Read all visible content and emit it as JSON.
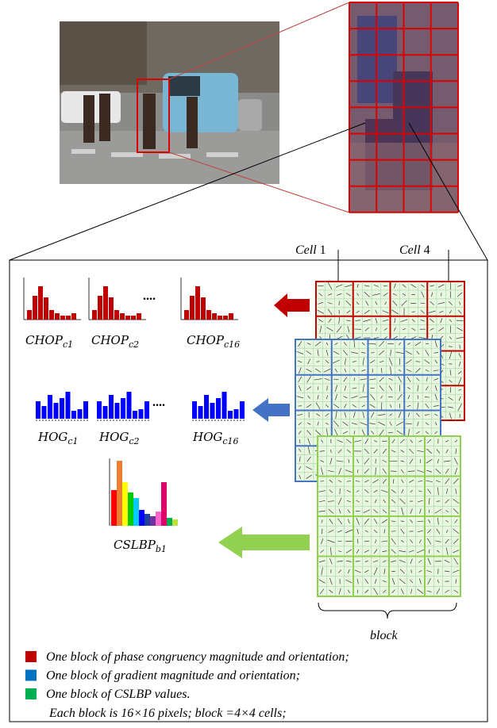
{
  "labels": {
    "cell_1": {
      "word": "Cell",
      "num": "1"
    },
    "cell_4": {
      "word": "Cell",
      "num": "4"
    },
    "block": "block"
  },
  "chop": [
    {
      "base": "CHOP",
      "sub": "c1"
    },
    {
      "base": "CHOP",
      "sub": "c2"
    },
    {
      "base": "CHOP",
      "sub": "c16"
    }
  ],
  "hog": [
    {
      "base": "HOG",
      "sub": "c1"
    },
    {
      "base": "HOG",
      "sub": "c2"
    },
    {
      "base": "HOG",
      "sub": "c16"
    }
  ],
  "cslbp": {
    "base": "CSLBP",
    "sub": "b1"
  },
  "ellipsis": "....",
  "legend": [
    {
      "text": "One block of phase congruency magnitude and orientation;",
      "color": "#c00000"
    },
    {
      "text": "One block of gradient magnitude and orientation;",
      "color": "#0070c0"
    },
    {
      "text": "One block of CSLBP values.",
      "color": "#00b050"
    }
  ],
  "note": "Each block is 16×16 pixels; block =4×4 cells;"
}
